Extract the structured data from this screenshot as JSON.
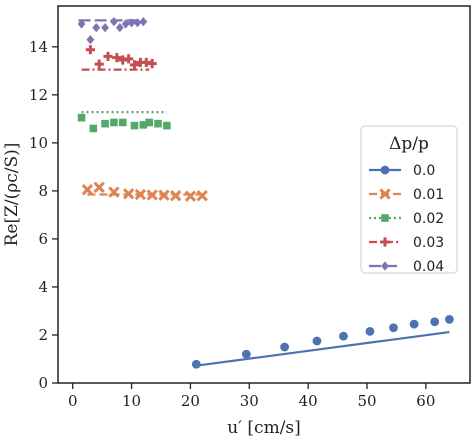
{
  "chart_data": {
    "type": "line",
    "xlabel": "u′ [cm/s]",
    "ylabel": "Re[Z/(ρc/S)]",
    "xlim": [
      -2.5,
      67.5
    ],
    "ylim": [
      0,
      15.7
    ],
    "xticks": [
      0,
      10,
      20,
      30,
      40,
      50,
      60
    ],
    "yticks": [
      0,
      2,
      4,
      6,
      8,
      10,
      12,
      14
    ],
    "grid": false,
    "legend": {
      "title": "Δp/p",
      "placement": "right"
    },
    "series": [
      {
        "name": "0.0",
        "color": "#4c72b0",
        "marker": "circle",
        "dash": "solid",
        "line": {
          "x": [
            21,
            64
          ],
          "y": [
            0.72,
            2.12
          ]
        },
        "points": {
          "x": [
            21,
            29.5,
            36,
            41.5,
            46,
            50.5,
            54.5,
            58,
            61.5,
            64
          ],
          "y": [
            0.78,
            1.2,
            1.5,
            1.75,
            1.95,
            2.15,
            2.3,
            2.45,
            2.55,
            2.65
          ]
        }
      },
      {
        "name": "0.01",
        "color": "#dd8452",
        "marker": "x",
        "dash": "dashed",
        "line": {
          "x": [
            2.5,
            22
          ],
          "y": [
            7.85,
            7.85
          ]
        },
        "points": {
          "x": [
            2.5,
            4.5,
            7,
            9.5,
            11.5,
            13.5,
            15.5,
            17.5,
            20,
            22
          ],
          "y": [
            8.05,
            8.15,
            7.95,
            7.88,
            7.85,
            7.83,
            7.82,
            7.8,
            7.78,
            7.8
          ]
        }
      },
      {
        "name": "0.02",
        "color": "#55a868",
        "marker": "square",
        "dash": "dotted",
        "line": {
          "x": [
            1.5,
            16
          ],
          "y": [
            11.28,
            11.28
          ]
        },
        "points": {
          "x": [
            1.5,
            3.5,
            5.5,
            7,
            8.5,
            10.5,
            12,
            13,
            14.5,
            16
          ],
          "y": [
            11.05,
            10.6,
            10.8,
            10.85,
            10.85,
            10.72,
            10.75,
            10.85,
            10.8,
            10.72
          ]
        }
      },
      {
        "name": "0.03",
        "color": "#c44e52",
        "marker": "plus",
        "dash": "dashdot",
        "line": {
          "x": [
            1.5,
            13
          ],
          "y": [
            13.05,
            13.05
          ]
        },
        "points": {
          "x": [
            3,
            4.5,
            6,
            7.5,
            8.5,
            9.5,
            10.5,
            11.5,
            12.5,
            13.5
          ],
          "y": [
            13.88,
            13.28,
            13.6,
            13.55,
            13.45,
            13.5,
            13.25,
            13.35,
            13.35,
            13.3
          ]
        }
      },
      {
        "name": "0.04",
        "color": "#8172b3",
        "marker": "diamond",
        "dash": "longdash",
        "line": {
          "x": [
            1,
            12
          ],
          "y": [
            15.1,
            15.1
          ]
        },
        "points": {
          "x": [
            1.5,
            3,
            4,
            5.5,
            7,
            8,
            9,
            10,
            11,
            12
          ],
          "y": [
            14.95,
            14.3,
            14.8,
            14.8,
            15.05,
            14.8,
            14.95,
            15.0,
            15.0,
            15.05
          ]
        }
      }
    ]
  }
}
